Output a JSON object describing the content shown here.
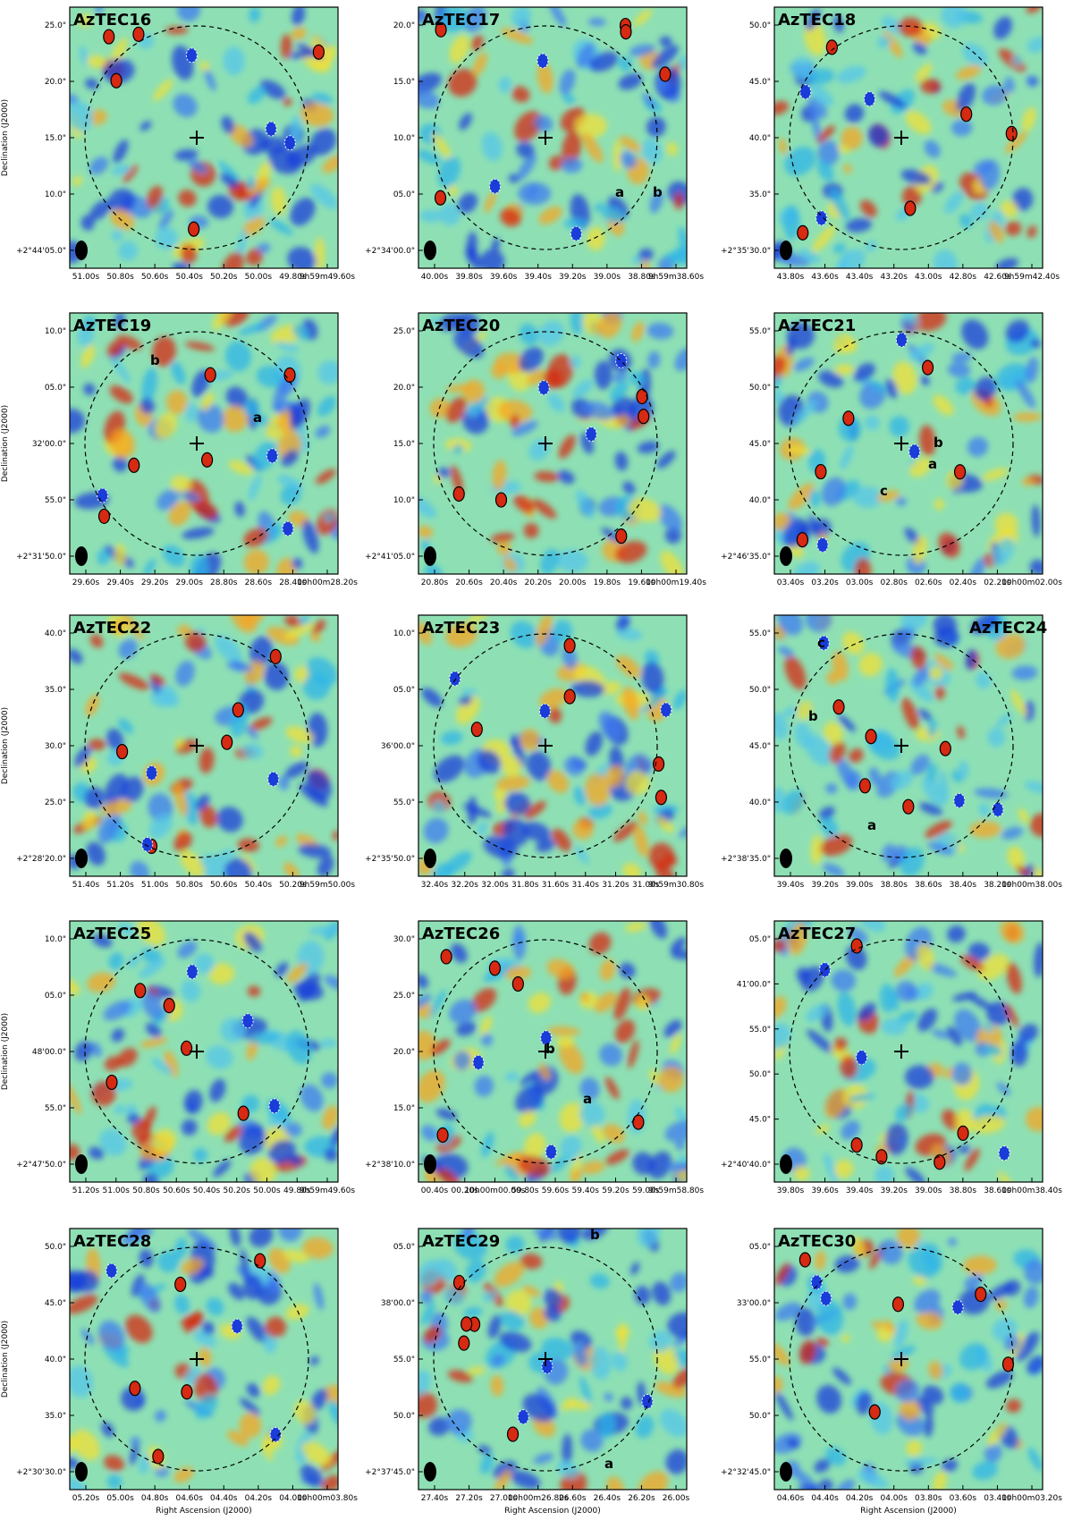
{
  "figure": {
    "ylabel": "Declination (J2000)",
    "xlabel": "Right Ascension (J2000)"
  },
  "colors": {
    "map_background": "#8ee0b4",
    "positive": "#d62a12",
    "negative": "#1a3cd9",
    "contour": "#000000",
    "neg_contour": "#ffffff"
  },
  "panels": [
    {
      "title": "AzTEC16",
      "y_ticks": [
        "25.0\"",
        "20.0\"",
        "15.0\"",
        "10.0\"",
        "+2°44'05.0\""
      ],
      "x_ticks": [
        "51.00s",
        "50.80s",
        "50.60s",
        "50.40s",
        "50.20s",
        "50.00s",
        "49.80s",
        "9h59m49.60s"
      ],
      "sources": []
    },
    {
      "title": "AzTEC17",
      "y_ticks": [
        "20.0\"",
        "15.0\"",
        "10.0\"",
        "05.0\"",
        "+2°34'00.0\""
      ],
      "x_ticks": [
        "40.00s",
        "39.80s",
        "39.60s",
        "39.40s",
        "39.20s",
        "39.00s",
        "38.80s",
        "9h59m38.60s"
      ],
      "sources": [
        "a",
        "b"
      ]
    },
    {
      "title": "AzTEC18",
      "y_ticks": [
        "50.0\"",
        "45.0\"",
        "40.0\"",
        "35.0\"",
        "+2°35'30.0\""
      ],
      "x_ticks": [
        "43.80s",
        "43.60s",
        "43.40s",
        "43.20s",
        "43.00s",
        "42.80s",
        "42.60s",
        "9h59m42.40s"
      ],
      "sources": []
    },
    {
      "title": "AzTEC19",
      "y_ticks": [
        "10.0\"",
        "05.0\"",
        "32'00.0\"",
        "55.0\"",
        "+2°31'50.0\""
      ],
      "x_ticks": [
        "29.60s",
        "29.40s",
        "29.20s",
        "29.00s",
        "28.80s",
        "28.60s",
        "28.40s",
        "10h00m28.20s"
      ],
      "sources": [
        "b",
        "a"
      ]
    },
    {
      "title": "AzTEC20",
      "y_ticks": [
        "25.0\"",
        "20.0\"",
        "15.0\"",
        "10.0\"",
        "+2°41'05.0\""
      ],
      "x_ticks": [
        "20.80s",
        "20.60s",
        "20.40s",
        "20.20s",
        "20.00s",
        "19.80s",
        "19.60s",
        "10h00m19.40s"
      ],
      "sources": []
    },
    {
      "title": "AzTEC21",
      "y_ticks": [
        "55.0\"",
        "50.0\"",
        "45.0\"",
        "40.0\"",
        "+2°46'35.0\""
      ],
      "x_ticks": [
        "03.40s",
        "03.20s",
        "03.00s",
        "02.80s",
        "02.60s",
        "02.40s",
        "02.20s",
        "10h00m02.00s"
      ],
      "sources": [
        "b",
        "a",
        "c"
      ]
    },
    {
      "title": "AzTEC22",
      "y_ticks": [
        "40.0\"",
        "35.0\"",
        "30.0\"",
        "25.0\"",
        "+2°28'20.0\""
      ],
      "x_ticks": [
        "51.40s",
        "51.20s",
        "51.00s",
        "50.80s",
        "50.60s",
        "50.40s",
        "50.20s",
        "9h59m50.00s"
      ],
      "sources": []
    },
    {
      "title": "AzTEC23",
      "y_ticks": [
        "10.0\"",
        "05.0\"",
        "36'00.0\"",
        "55.0\"",
        "+2°35'50.0\""
      ],
      "x_ticks": [
        "32.40s",
        "32.20s",
        "32.00s",
        "31.80s",
        "31.60s",
        "31.40s",
        "31.20s",
        "31.00s",
        "9h59m30.80s"
      ],
      "sources": []
    },
    {
      "title": "AzTEC24",
      "y_ticks": [
        "55.0\"",
        "50.0\"",
        "45.0\"",
        "40.0\"",
        "+2°38'35.0\""
      ],
      "x_ticks": [
        "39.40s",
        "39.20s",
        "39.00s",
        "38.80s",
        "38.60s",
        "38.40s",
        "38.20s",
        "10h00m38.00s"
      ],
      "sources": [
        "c",
        "b",
        "a"
      ]
    },
    {
      "title": "AzTEC25",
      "y_ticks": [
        "10.0\"",
        "05.0\"",
        "48'00.0\"",
        "55.0\"",
        "+2°47'50.0\""
      ],
      "x_ticks": [
        "51.20s",
        "51.00s",
        "50.80s",
        "50.60s",
        "50.40s",
        "50.20s",
        "50.00s",
        "49.80s",
        "9h59m49.60s"
      ],
      "sources": []
    },
    {
      "title": "AzTEC26",
      "y_ticks": [
        "30.0\"",
        "25.0\"",
        "20.0\"",
        "15.0\"",
        "+2°38'10.0\""
      ],
      "x_ticks": [
        "00.40s",
        "00.20s",
        "10h00m00.00s",
        "59.80s",
        "59.60s",
        "59.40s",
        "59.20s",
        "59.00s",
        "9h59m58.80s"
      ],
      "sources": [
        "b",
        "a"
      ]
    },
    {
      "title": "AzTEC27",
      "y_ticks": [
        "05.0\"",
        "41'00.0\"",
        "55.0\"",
        "50.0\"",
        "45.0\"",
        "+2°40'40.0\""
      ],
      "x_ticks": [
        "39.80s",
        "39.60s",
        "39.40s",
        "39.20s",
        "39.00s",
        "38.80s",
        "38.60s",
        "10h00m38.40s"
      ],
      "sources": []
    },
    {
      "title": "AzTEC28",
      "y_ticks": [
        "50.0\"",
        "45.0\"",
        "40.0\"",
        "35.0\"",
        "+2°30'30.0\""
      ],
      "x_ticks": [
        "05.20s",
        "05.00s",
        "04.80s",
        "04.60s",
        "04.40s",
        "04.20s",
        "04.00s",
        "10h00m03.80s"
      ],
      "sources": []
    },
    {
      "title": "AzTEC29",
      "y_ticks": [
        "05.0\"",
        "38'00.0\"",
        "55.0\"",
        "50.0\"",
        "+2°37'45.0\""
      ],
      "x_ticks": [
        "27.40s",
        "27.20s",
        "27.00s",
        "10h00m26.80s",
        "26.60s",
        "26.40s",
        "26.20s",
        "26.00s"
      ],
      "sources": [
        "b",
        "a"
      ]
    },
    {
      "title": "AzTEC30",
      "y_ticks": [
        "05.0\"",
        "33'00.0\"",
        "55.0\"",
        "50.0\"",
        "+2°32'45.0\""
      ],
      "x_ticks": [
        "04.60s",
        "04.40s",
        "04.20s",
        "04.00s",
        "03.80s",
        "03.60s",
        "03.40s",
        "10h00m03.20s"
      ],
      "sources": []
    }
  ]
}
